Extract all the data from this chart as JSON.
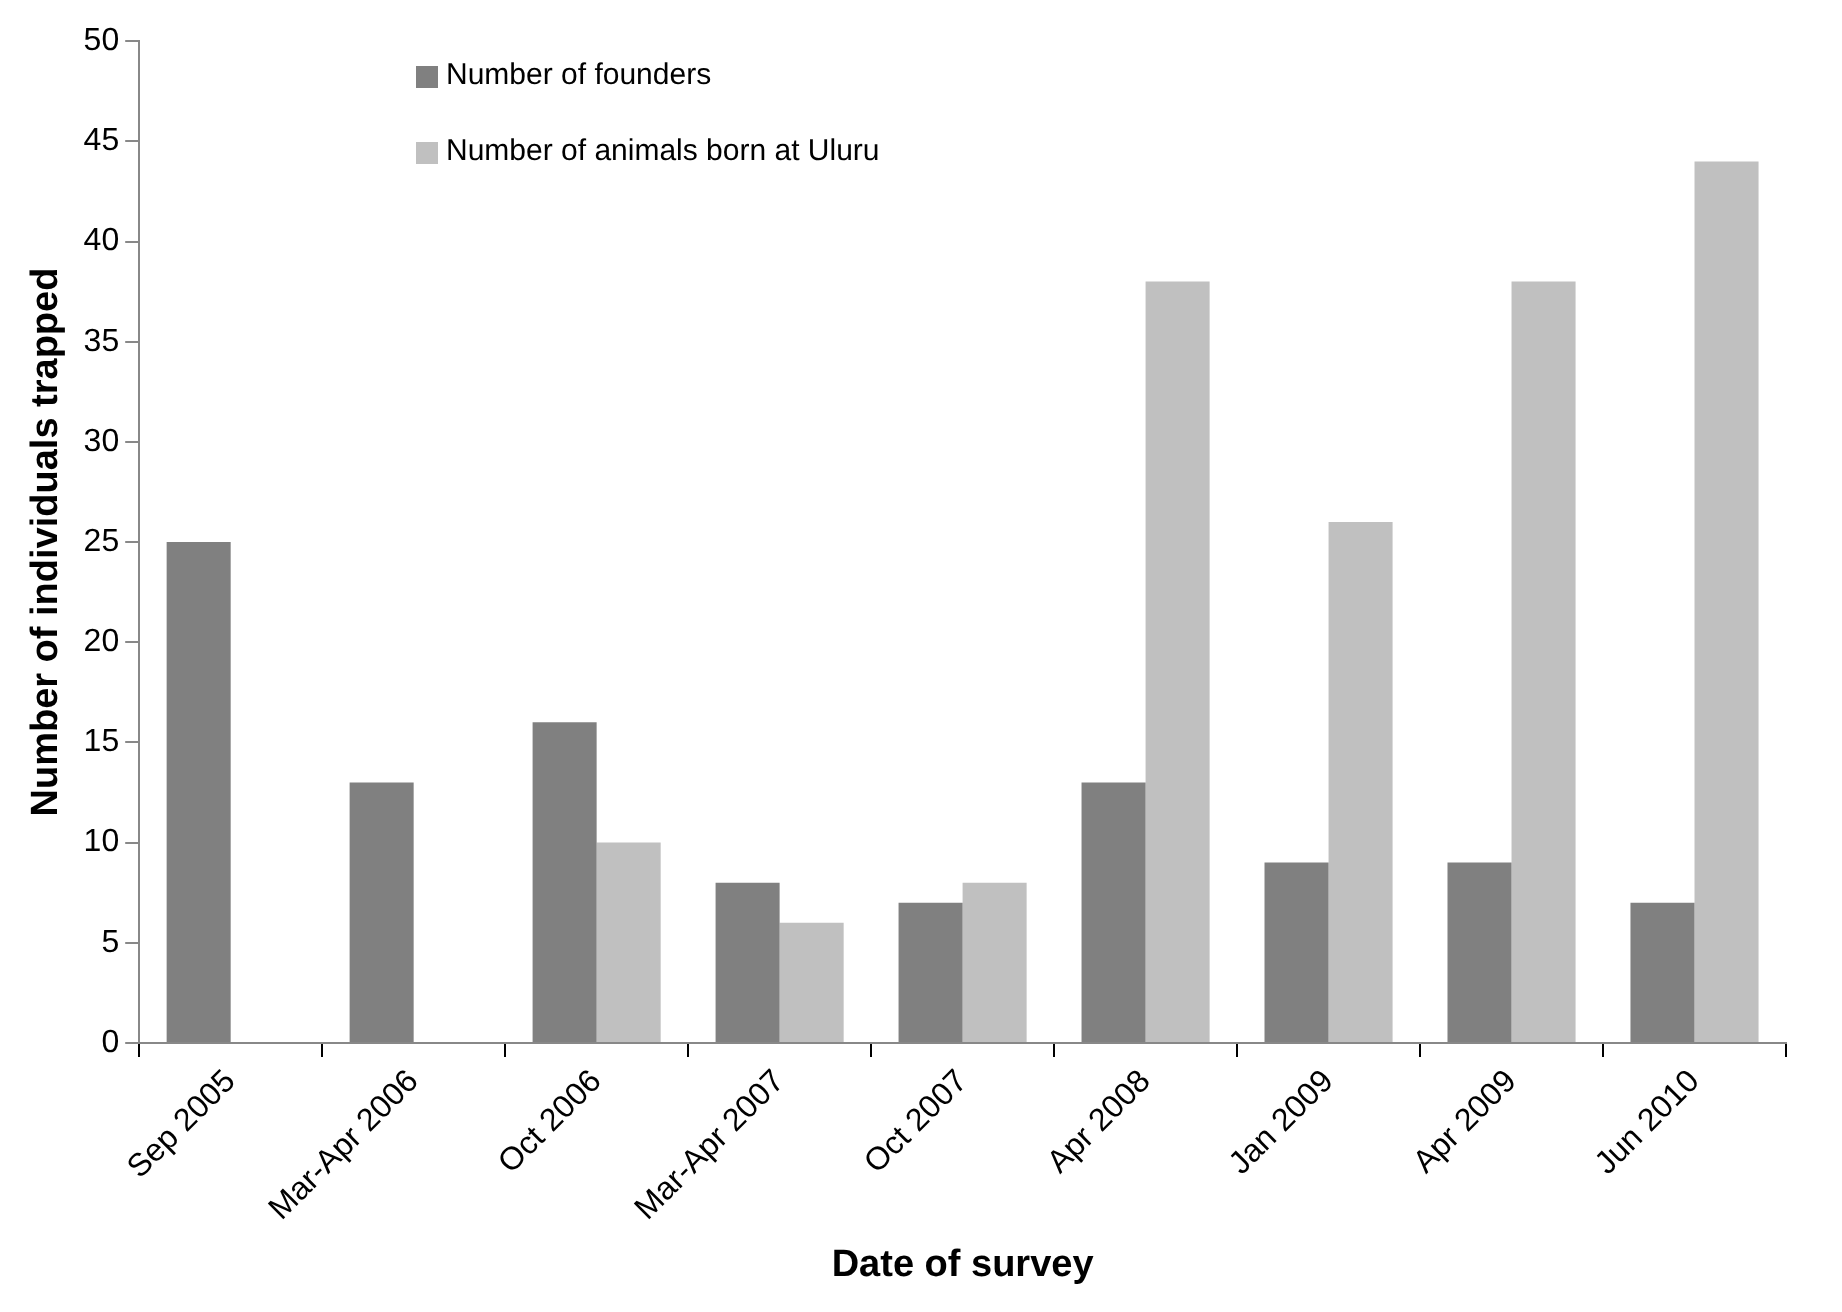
{
  "chart_data": {
    "type": "bar",
    "xlabel": "Date of survey",
    "ylabel": "Number of individuals trapped",
    "categories": [
      "Sep 2005",
      "Mar-Apr 2006",
      "Oct 2006",
      "Mar-Apr 2007",
      "Oct 2007",
      "Apr 2008",
      "Jan 2009",
      "Apr 2009",
      "Jun 2010"
    ],
    "series": [
      {
        "name": "Number of founders",
        "color": "#808080",
        "values": [
          25,
          13,
          16,
          8,
          7,
          13,
          9,
          9,
          7
        ]
      },
      {
        "name": "Number of animals born at Uluru",
        "color": "#c0c0c0",
        "values": [
          0,
          0,
          10,
          6,
          8,
          38,
          26,
          38,
          44
        ]
      }
    ],
    "ylim": [
      0,
      50
    ],
    "yticks": [
      0,
      5,
      10,
      15,
      20,
      25,
      30,
      35,
      40,
      45,
      50
    ],
    "grid": false,
    "legend": "top left"
  }
}
